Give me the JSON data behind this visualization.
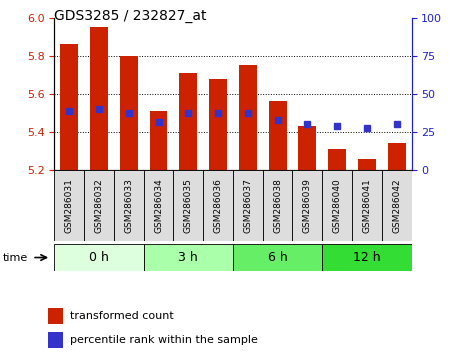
{
  "title": "GDS3285 / 232827_at",
  "samples": [
    "GSM286031",
    "GSM286032",
    "GSM286033",
    "GSM286034",
    "GSM286035",
    "GSM286036",
    "GSM286037",
    "GSM286038",
    "GSM286039",
    "GSM286040",
    "GSM286041",
    "GSM286042"
  ],
  "bar_values": [
    5.86,
    5.95,
    5.8,
    5.51,
    5.71,
    5.68,
    5.75,
    5.56,
    5.43,
    5.31,
    5.26,
    5.34
  ],
  "bar_base": 5.2,
  "blue_values": [
    5.51,
    5.52,
    5.5,
    5.45,
    5.5,
    5.5,
    5.5,
    5.46,
    5.44,
    5.43,
    5.42,
    5.44
  ],
  "bar_color": "#cc2200",
  "blue_color": "#3333cc",
  "ylim_left": [
    5.2,
    6.0
  ],
  "ylim_right": [
    0,
    100
  ],
  "yticks_left": [
    5.2,
    5.4,
    5.6,
    5.8,
    6.0
  ],
  "yticks_right": [
    0,
    25,
    50,
    75,
    100
  ],
  "groups": [
    {
      "label": "0 h",
      "start": 0,
      "end": 3,
      "color": "#ddffdd"
    },
    {
      "label": "3 h",
      "start": 3,
      "end": 6,
      "color": "#aaffaa"
    },
    {
      "label": "6 h",
      "start": 6,
      "end": 9,
      "color": "#66ee66"
    },
    {
      "label": "12 h",
      "start": 9,
      "end": 12,
      "color": "#33dd33"
    }
  ],
  "legend_bar_label": "transformed count",
  "legend_blue_label": "percentile rank within the sample",
  "tick_label_color_left": "#cc2200",
  "tick_label_color_right": "#2222cc",
  "grid_values": [
    5.4,
    5.6,
    5.8
  ],
  "label_area_color": "#dddddd"
}
